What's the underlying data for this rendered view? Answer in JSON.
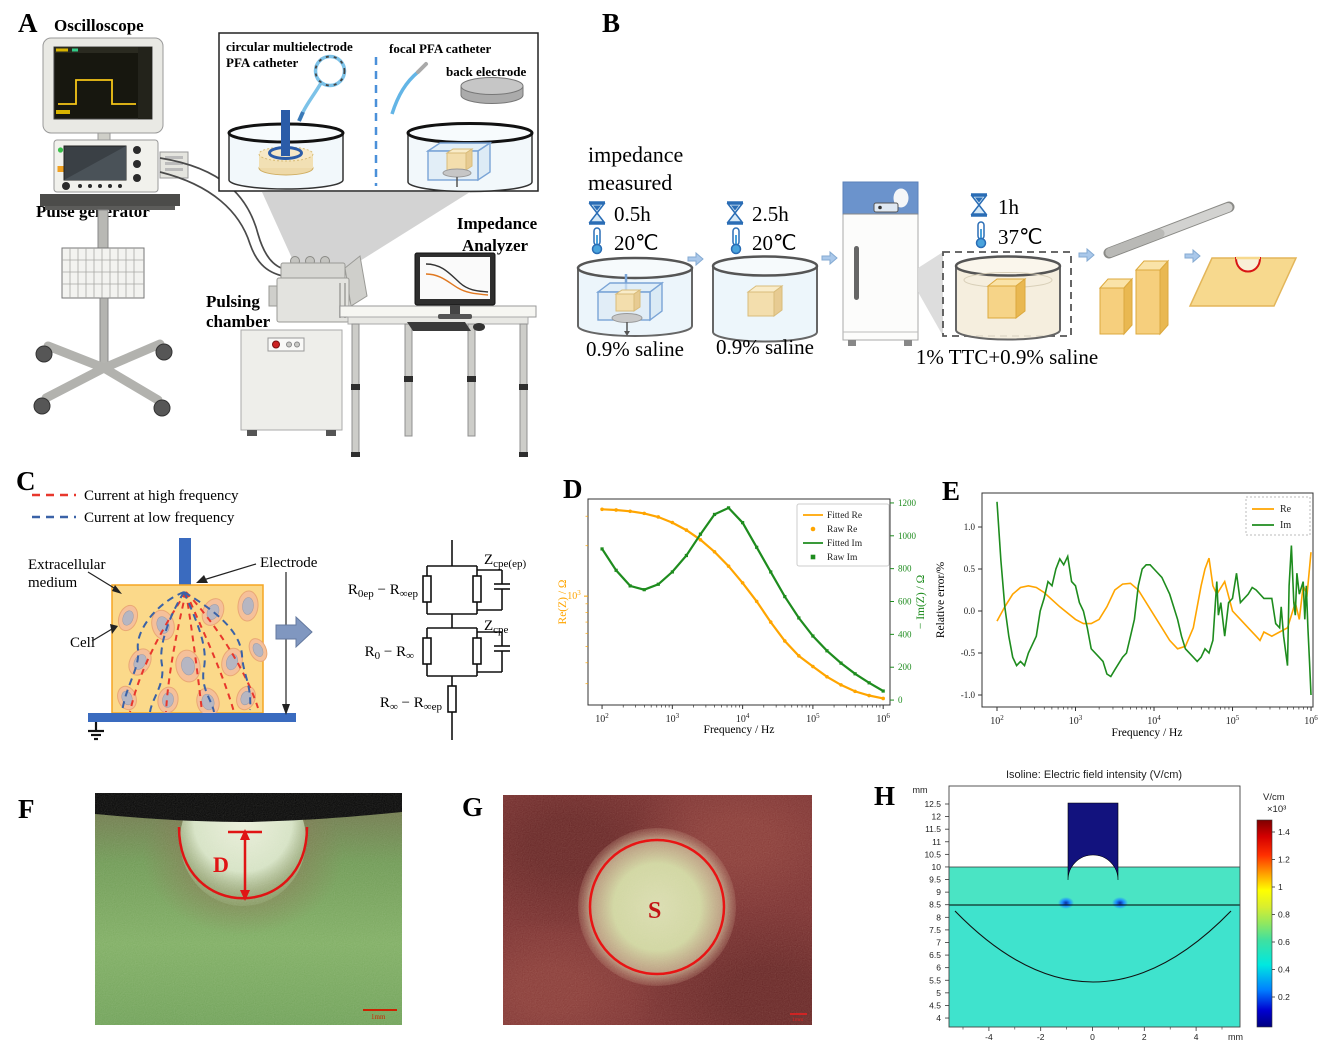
{
  "figure": {
    "panels": {
      "a": "A",
      "b": "B",
      "c": "C",
      "d": "D",
      "e": "E",
      "f": "F",
      "g": "G",
      "h": "H"
    }
  },
  "colors": {
    "orange": "#FFA500",
    "green": "#1E8C1E",
    "annotation_red": "#E01414",
    "dash_red": "#E8372C",
    "dash_blue": "#3A62A7",
    "electrode_blue": "#3A6BBF",
    "tissue_yellow": "#FBD98A",
    "navy": "#12127E",
    "cyan_bg": "#3FE3CD",
    "icon_blue": "#2A6DB5",
    "arrow_blue": "#AAC8EA"
  },
  "panelA": {
    "oscilloscope": "Oscilloscope",
    "pulse_generator": "Pulse generator",
    "pulsing_1": "Pulsing",
    "pulsing_2": "chamber",
    "impedance_1": "Impedance",
    "impedance_2": "Analyzer",
    "inset": {
      "circular_1": "circular  multielectrode",
      "circular_2": "PFA catheter",
      "focal": "focal PFA catheter",
      "back_electrode": "back electrode"
    }
  },
  "panelB": {
    "measured_1": "impedance",
    "measured_2": "measured",
    "step1": {
      "time": "0.5h",
      "temp": "20℃",
      "label": "0.9% saline"
    },
    "step2": {
      "time": "2.5h",
      "temp": "20℃",
      "label": "0.9% saline"
    },
    "step3": {
      "time": "1h",
      "temp": "37℃",
      "label": "1% TTC+0.9% saline"
    }
  },
  "panelC": {
    "legend_high": "Current at high frequency",
    "legend_low": "Current at low frequency",
    "extracellular_1": "Extracellular",
    "extracellular_2": "medium",
    "electrode": "Electrode",
    "cell": "Cell",
    "labels": {
      "r1": {
        "b1": "R",
        "s1": "0ep",
        "m": " − ",
        "b2": "R",
        "s2": "∞ep"
      },
      "r2": {
        "b1": "R",
        "s1": "0",
        "m": " − ",
        "b2": "R",
        "s2": "∞"
      },
      "r3": {
        "b1": "R",
        "s1": "∞",
        "m": " − ",
        "b2": "R",
        "s2": "∞ep"
      },
      "z1": {
        "b": "Z",
        "s": "cpe(ep)"
      },
      "z2": {
        "b": "Z",
        "s": "cpe"
      }
    }
  },
  "panelF": {
    "marker": "D",
    "scalebar": "1mm"
  },
  "panelG": {
    "marker": "S",
    "scalebar": "1mm"
  },
  "chart_data": [
    {
      "id": "D",
      "type": "line",
      "x_scale": "log",
      "xlabel": "Frequency / Hz",
      "ylabel_left": "Re(Z) / Ω",
      "ylabel_right": "− Im(Z) / Ω",
      "xlim_log": [
        1.8,
        6.097
      ],
      "ylim_left_log": [
        2.35,
        3.58
      ],
      "left_major_exp": [
        3
      ],
      "ylim_right": [
        -30,
        1224
      ],
      "right_ticks": [
        0,
        200,
        400,
        600,
        800,
        1000,
        1200
      ],
      "x_major_exp": [
        2,
        3,
        4,
        5,
        6
      ],
      "logf": [
        2,
        2.2,
        2.4,
        2.6,
        2.8,
        3,
        3.2,
        3.4,
        3.6,
        3.8,
        4,
        4.2,
        4.4,
        4.6,
        4.8,
        5,
        5.2,
        5.4,
        5.6,
        5.8,
        6
      ],
      "series": [
        {
          "name": "Fitted Re",
          "axis": "left",
          "color": "orange",
          "style": "line",
          "values": [
            3300,
            3270,
            3210,
            3120,
            2970,
            2750,
            2480,
            2170,
            1840,
            1510,
            1200,
            930,
            700,
            540,
            440,
            380,
            330,
            295,
            270,
            255,
            245
          ]
        },
        {
          "name": "Raw Re",
          "axis": "left",
          "color": "orange",
          "style": "dot",
          "values": [
            3300,
            3270,
            3210,
            3120,
            2970,
            2750,
            2480,
            2170,
            1840,
            1510,
            1200,
            930,
            700,
            540,
            440,
            380,
            330,
            295,
            270,
            255,
            245
          ]
        },
        {
          "name": "Fitted Im",
          "axis": "right",
          "color": "green",
          "style": "line",
          "values": [
            920,
            790,
            695,
            672,
            705,
            780,
            880,
            1010,
            1130,
            1170,
            1080,
            930,
            780,
            630,
            500,
            390,
            300,
            225,
            160,
            105,
            55
          ]
        },
        {
          "name": "Raw Im",
          "axis": "right",
          "color": "green",
          "style": "square",
          "values": [
            920,
            790,
            695,
            672,
            705,
            780,
            880,
            1010,
            1130,
            1170,
            1080,
            930,
            780,
            630,
            500,
            390,
            300,
            225,
            160,
            105,
            55
          ]
        }
      ]
    },
    {
      "id": "E",
      "type": "line",
      "x_scale": "log",
      "xlabel": "Frequency / Hz",
      "ylabel": "Relative error/%",
      "xlim_log": [
        1.809,
        6.025
      ],
      "ylim": [
        -1.143,
        1.405
      ],
      "yticks": [
        -1.0,
        -0.5,
        0.0,
        0.5,
        1.0
      ],
      "x_major_exp": [
        2,
        3,
        4,
        5,
        6
      ],
      "series": [
        {
          "name": "Re",
          "color": "orange",
          "x": [
            2,
            2.1,
            2.2,
            2.3,
            2.4,
            2.5,
            2.6,
            2.8,
            3,
            3.1,
            3.2,
            3.3,
            3.4,
            3.5,
            3.6,
            3.7,
            3.8,
            4,
            4.1,
            4.2,
            4.3,
            4.4,
            4.5,
            4.6,
            4.65,
            4.7,
            4.75,
            4.8,
            4.9,
            5,
            5.1,
            5.2,
            5.3,
            5.35,
            5.4,
            5.5,
            5.6,
            5.7,
            5.8,
            5.85,
            5.9,
            5.95,
            6
          ],
          "y": [
            -0.12,
            0.05,
            0.2,
            0.28,
            0.3,
            0.28,
            0.22,
            0.05,
            -0.1,
            -0.15,
            -0.15,
            -0.1,
            0.05,
            0.25,
            0.32,
            0.33,
            0.25,
            -0.05,
            -0.2,
            -0.35,
            -0.45,
            -0.42,
            -0.2,
            0.3,
            0.5,
            0.63,
            0.3,
            0.2,
            0.35,
            0,
            -0.1,
            -0.2,
            -0.3,
            -0.35,
            -0.25,
            -0.3,
            -0.25,
            -0.2,
            0.1,
            -0.1,
            0.3,
            0.2,
            0.7
          ]
        },
        {
          "name": "Im",
          "color": "green",
          "x": [
            2,
            2.05,
            2.1,
            2.15,
            2.2,
            2.25,
            2.3,
            2.35,
            2.4,
            2.5,
            2.55,
            2.6,
            2.65,
            2.7,
            2.75,
            2.8,
            2.85,
            2.9,
            2.95,
            3,
            3.05,
            3.1,
            3.15,
            3.2,
            3.3,
            3.35,
            3.4,
            3.45,
            3.5,
            3.6,
            3.65,
            3.7,
            3.75,
            3.8,
            3.85,
            3.9,
            3.95,
            4,
            4.1,
            4.2,
            4.3,
            4.35,
            4.4,
            4.5,
            4.55,
            4.6,
            4.65,
            4.7,
            4.75,
            4.8,
            4.82,
            4.85,
            4.9,
            4.95,
            5,
            5.05,
            5.1,
            5.2,
            5.25,
            5.3,
            5.4,
            5.5,
            5.55,
            5.6,
            5.62,
            5.65,
            5.7,
            5.72,
            5.75,
            5.78,
            5.8,
            5.82,
            5.85,
            5.9,
            5.92,
            5.94,
            5.96,
            5.98,
            6
          ],
          "y": [
            1.3,
            0.6,
            0.05,
            -0.3,
            -0.55,
            -0.65,
            -0.6,
            -0.65,
            -0.5,
            -0.3,
            0,
            0.15,
            0.35,
            0.3,
            0.5,
            0.62,
            0.55,
            0.65,
            0.35,
            0.3,
            0.1,
            0,
            -0.2,
            -0.45,
            -0.55,
            -0.6,
            -0.75,
            -0.78,
            -0.7,
            -0.55,
            -0.5,
            -0.3,
            -0.1,
            0.3,
            0.5,
            0.55,
            0.55,
            0.5,
            0.4,
            0.2,
            -0.1,
            -0.3,
            -0.45,
            -0.55,
            -0.6,
            -0.55,
            -0.45,
            -0.5,
            -0.35,
            0.35,
            -0.05,
            0.1,
            -0.3,
            0.1,
            0.15,
            0.45,
            0.1,
            0.2,
            0.28,
            0.25,
            0.15,
            0.15,
            -0.15,
            -0.2,
            0.05,
            -0.3,
            -0.65,
            0.3,
            0.78,
            0.1,
            -0.05,
            0.45,
            0.2,
            0.35,
            -0.1,
            0.3,
            -0.2,
            -0.6,
            -1
          ]
        }
      ]
    },
    {
      "id": "H",
      "type": "heatmap",
      "title": "Isoline: Electric field intensity (V/cm)",
      "y_unit": "mm",
      "x_unit": "mm",
      "colorbar_title_1": "V/cm",
      "colorbar_title_2": "×10³",
      "yticks": [
        12.5,
        12,
        11.5,
        11,
        10.5,
        10,
        9.5,
        9,
        8.5,
        8,
        7.5,
        7,
        6.5,
        6,
        5.5,
        5,
        4.5,
        4
      ],
      "xticks": [
        -4,
        -2,
        0,
        2,
        4
      ],
      "colorbar_ticks": [
        1.4,
        1.2,
        1,
        0.8,
        0.6,
        0.4,
        0.2
      ],
      "saline_top_mm": 10,
      "tissue_top_mm": 8.5,
      "electrode_halfwidth_mm": 1,
      "lesion_depth_mm": 5.6
    }
  ]
}
